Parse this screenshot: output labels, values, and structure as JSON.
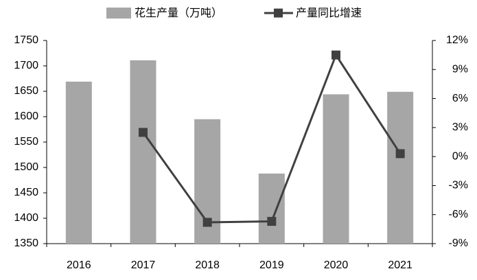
{
  "chart_data": {
    "type": "combo",
    "categories": [
      "2016",
      "2017",
      "2018",
      "2019",
      "2020",
      "2021"
    ],
    "series": [
      {
        "name": "花生产量（万吨）",
        "type": "bar",
        "color": "#a6a6a6",
        "values": [
          1669,
          1711,
          1595,
          1488,
          1644,
          1649
        ]
      },
      {
        "name": "产量同比增速",
        "type": "line",
        "axis": "y2",
        "color": "#404040",
        "values": [
          null,
          2.5,
          -6.8,
          -6.7,
          10.5,
          0.3
        ]
      }
    ],
    "ylim": [
      1350,
      1750
    ],
    "yticks": [
      1350,
      1400,
      1450,
      1500,
      1550,
      1600,
      1650,
      1700,
      1750
    ],
    "y2lim": [
      -9,
      12
    ],
    "y2ticks": [
      {
        "value": -9,
        "label": "-9%"
      },
      {
        "value": -6,
        "label": "-6%"
      },
      {
        "value": -3,
        "label": "-3%"
      },
      {
        "value": 0,
        "label": "0%"
      },
      {
        "value": 3,
        "label": "3%"
      },
      {
        "value": 6,
        "label": "6%"
      },
      {
        "value": 9,
        "label": "9%"
      },
      {
        "value": 12,
        "label": "12%"
      }
    ],
    "grid": false
  }
}
